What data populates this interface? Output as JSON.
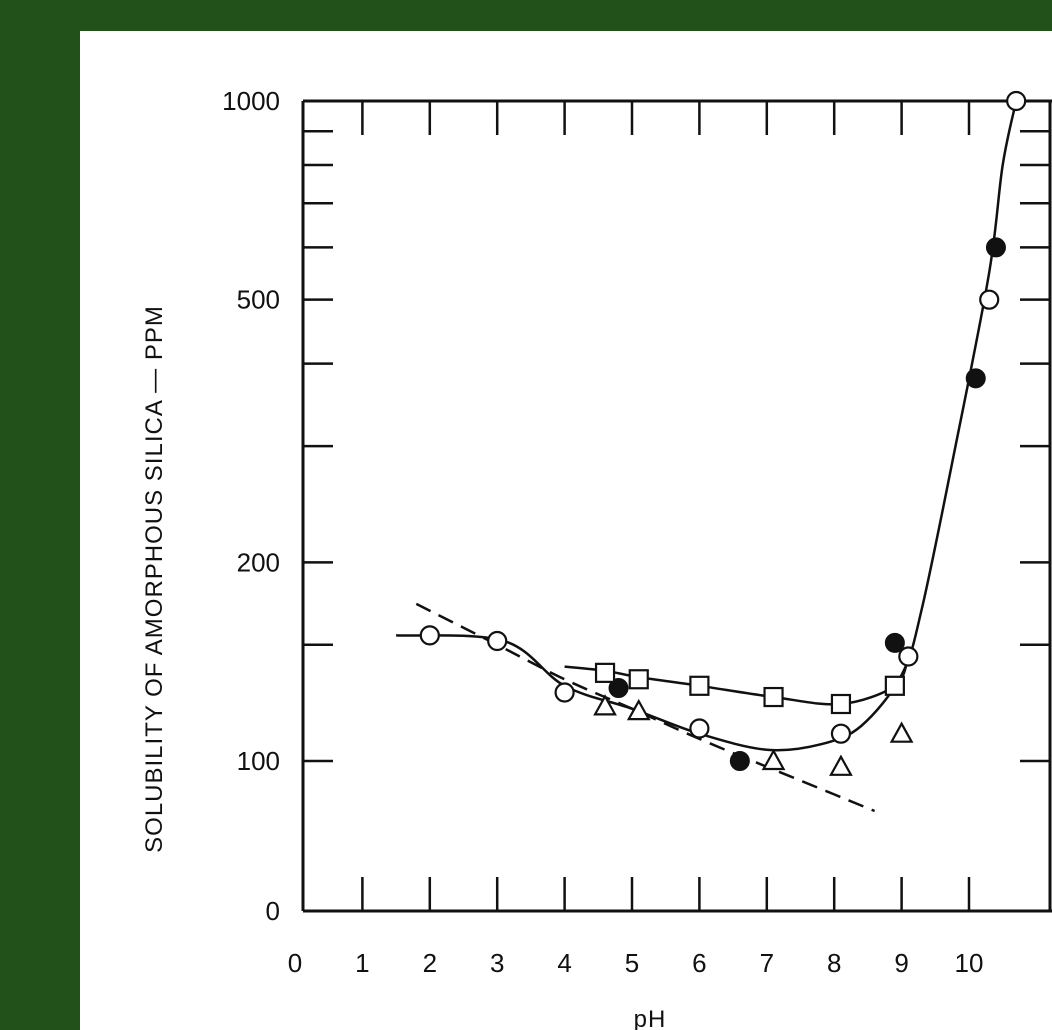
{
  "chart_data": {
    "type": "scatter",
    "title": "",
    "xlabel": "pH",
    "ylabel": "SOLUBILITY OF AMORPHOUS  SILICA — PPM",
    "xlim": [
      0,
      11
    ],
    "x_ticks": [
      0,
      1,
      2,
      3,
      4,
      5,
      6,
      7,
      8,
      9,
      10
    ],
    "x_tick_labels": [
      "0",
      "1",
      "2",
      "3",
      "4",
      "5",
      "6",
      "7",
      "8",
      "9",
      "10"
    ],
    "y_scale": "log",
    "y_ticks": [
      0,
      100,
      200,
      500,
      1000
    ],
    "y_tick_labels": [
      "0",
      "100",
      "200",
      "500",
      "1000"
    ],
    "grid": false,
    "series": [
      {
        "marker": "open-circle",
        "points": [
          [
            2.0,
            155
          ],
          [
            3.0,
            152
          ],
          [
            4.0,
            127
          ],
          [
            6.0,
            112
          ],
          [
            8.1,
            110
          ],
          [
            9.1,
            144
          ],
          [
            10.3,
            500
          ],
          [
            10.7,
            1000
          ]
        ]
      },
      {
        "marker": "filled-circle",
        "points": [
          [
            4.8,
            129
          ],
          [
            6.6,
            100
          ],
          [
            8.9,
            151
          ],
          [
            10.1,
            380
          ],
          [
            10.4,
            600
          ]
        ]
      },
      {
        "marker": "open-square",
        "points": [
          [
            4.6,
            136
          ],
          [
            5.1,
            133
          ],
          [
            6.0,
            130
          ],
          [
            7.1,
            125
          ],
          [
            8.1,
            122
          ],
          [
            8.9,
            130
          ]
        ]
      },
      {
        "marker": "open-triangle",
        "points": [
          [
            4.6,
            121
          ],
          [
            5.1,
            119
          ],
          [
            7.1,
            100
          ],
          [
            8.1,
            98
          ],
          [
            9.0,
            110
          ]
        ]
      }
    ],
    "curves": [
      {
        "style": "solid",
        "points": [
          [
            1.5,
            155
          ],
          [
            3.1,
            152
          ],
          [
            4.0,
            130
          ],
          [
            5.0,
            120
          ],
          [
            6.0,
            110
          ],
          [
            7.0,
            104
          ],
          [
            7.8,
            106
          ],
          [
            8.4,
            113
          ],
          [
            9.0,
            135
          ],
          [
            9.3,
            170
          ],
          [
            9.8,
            300
          ],
          [
            10.3,
            550
          ],
          [
            10.5,
            800
          ],
          [
            10.7,
            1000
          ]
        ]
      },
      {
        "style": "solid",
        "points": [
          [
            4.0,
            139
          ],
          [
            4.6,
            137
          ],
          [
            5.1,
            134
          ],
          [
            6.0,
            130
          ],
          [
            7.1,
            125
          ],
          [
            8.1,
            122
          ],
          [
            8.9,
            130
          ],
          [
            9.1,
            144
          ]
        ]
      },
      {
        "style": "dashed",
        "points": [
          [
            1.8,
            173
          ],
          [
            3.0,
            150
          ],
          [
            4.0,
            133
          ],
          [
            5.0,
            120
          ],
          [
            6.0,
            108
          ],
          [
            7.0,
            98
          ],
          [
            8.0,
            89
          ],
          [
            8.6,
            84
          ]
        ]
      }
    ]
  }
}
